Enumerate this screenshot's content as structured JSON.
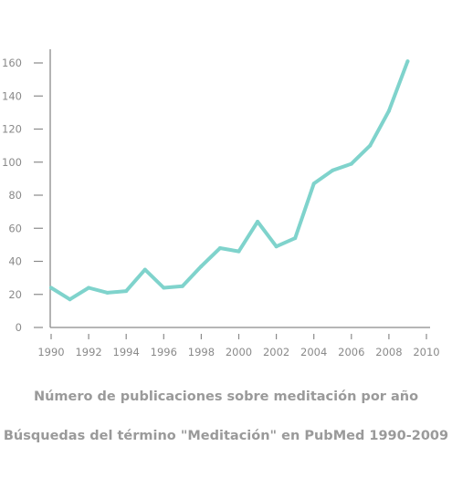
{
  "chart_data": {
    "type": "line",
    "title": "Número de publicaciones sobre meditación por año",
    "subtitle": "Búsquedas del término \"Meditación\" en PubMed 1990-2009",
    "xlabel": "",
    "ylabel": "",
    "x": [
      1990,
      1991,
      1992,
      1993,
      1994,
      1995,
      1996,
      1997,
      1998,
      1999,
      2000,
      2001,
      2002,
      2003,
      2004,
      2005,
      2006,
      2007,
      2008,
      2009,
      2010
    ],
    "series": [
      {
        "values": [
          24,
          17,
          24,
          21,
          22,
          35,
          24,
          25,
          37,
          48,
          46,
          64,
          49,
          54,
          87,
          95,
          99,
          110,
          131,
          161,
          null
        ]
      }
    ],
    "xlim": [
      1990,
      2010
    ],
    "ylim": [
      0,
      160
    ],
    "x_ticks": [
      "1990",
      "1992",
      "1994",
      "1996",
      "1998",
      "2000",
      "2002",
      "2004",
      "2006",
      "2008",
      "2010"
    ],
    "y_ticks": [
      "0",
      "20",
      "40",
      "60",
      "80",
      "100",
      "120",
      "140",
      "160"
    ],
    "grid": false,
    "legend": "none",
    "colors": {
      "line": "#7fd3cc",
      "axis": "#8a8a8a",
      "text": "#9a9a9a"
    }
  }
}
